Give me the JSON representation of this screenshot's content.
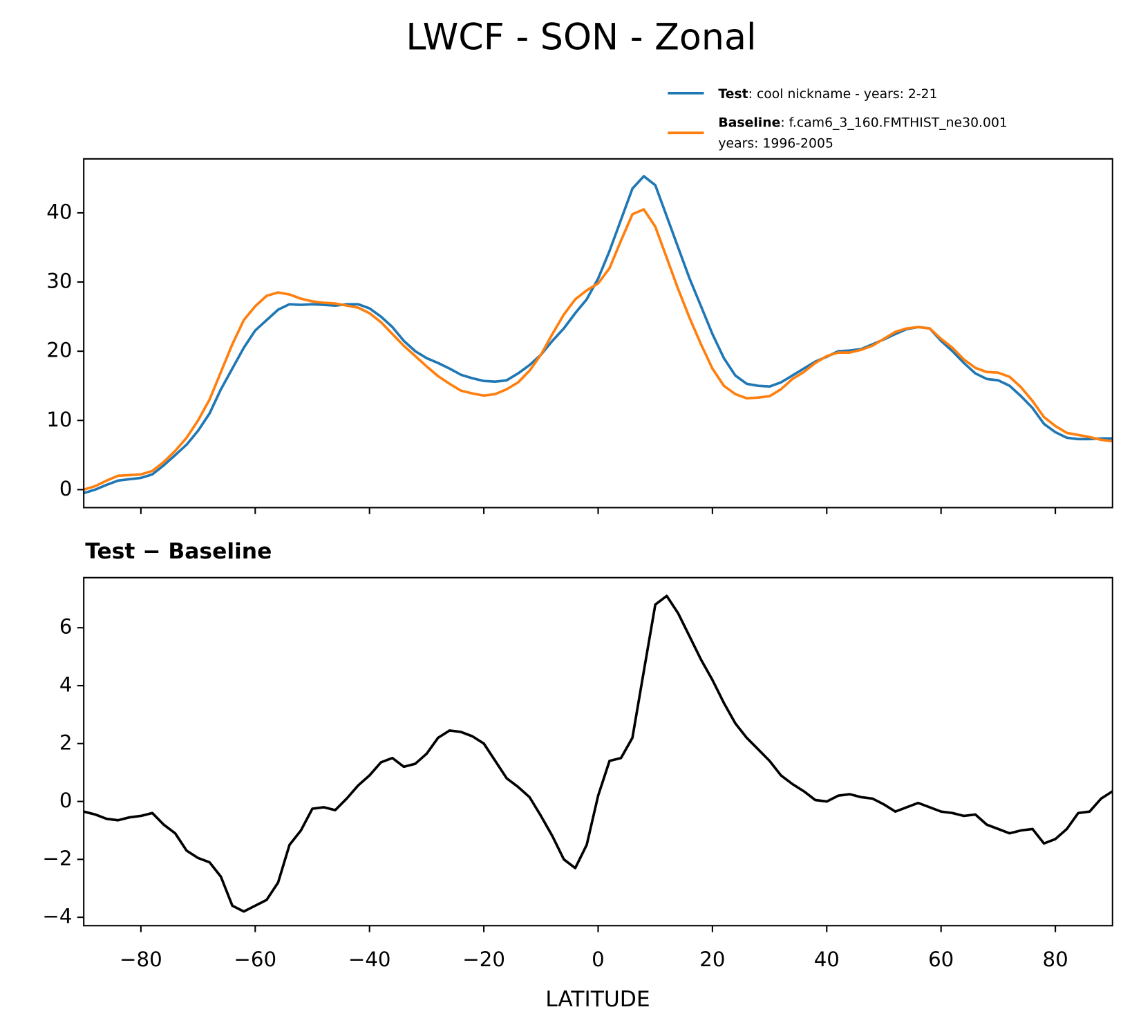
{
  "title": "LWCF - SON - Zonal",
  "chart_data": [
    {
      "type": "line",
      "x": [
        -90,
        -88,
        -86,
        -84,
        -82,
        -80,
        -78,
        -76,
        -74,
        -72,
        -70,
        -68,
        -66,
        -64,
        -62,
        -60,
        -58,
        -56,
        -54,
        -52,
        -50,
        -48,
        -46,
        -44,
        -42,
        -40,
        -38,
        -36,
        -34,
        -32,
        -30,
        -28,
        -26,
        -24,
        -22,
        -20,
        -18,
        -16,
        -14,
        -12,
        -10,
        -8,
        -6,
        -4,
        -2,
        0,
        2,
        4,
        6,
        8,
        10,
        12,
        14,
        16,
        18,
        20,
        22,
        24,
        26,
        28,
        30,
        32,
        34,
        36,
        38,
        40,
        42,
        44,
        46,
        48,
        50,
        52,
        54,
        56,
        58,
        60,
        62,
        64,
        66,
        68,
        70,
        72,
        74,
        76,
        78,
        80,
        82,
        84,
        86,
        88,
        90
      ],
      "series": [
        {
          "name": "Test",
          "label": ": cool nickname - years: 2-21",
          "color": "#1f77b4",
          "values": [
            -0.5,
            0,
            0.7,
            1.3,
            1.5,
            1.7,
            2.2,
            3.5,
            5,
            6.5,
            8.5,
            11,
            14.5,
            17.5,
            20.5,
            23,
            24.5,
            26,
            26.8,
            26.7,
            26.8,
            26.7,
            26.6,
            26.8,
            26.8,
            26.2,
            25,
            23.5,
            21.5,
            20,
            19,
            18.3,
            17.5,
            16.6,
            16.1,
            15.7,
            15.6,
            15.8,
            16.8,
            18,
            19.5,
            21.5,
            23.3,
            25.5,
            27.5,
            30.5,
            34.5,
            39,
            43.5,
            45.3,
            44,
            39.5,
            35,
            30.5,
            26.5,
            22.5,
            19,
            16.5,
            15.3,
            15,
            14.9,
            15.5,
            16.5,
            17.5,
            18.5,
            19.2,
            20,
            20.1,
            20.3,
            21,
            21.7,
            22.5,
            23.2,
            23.5,
            23.3,
            21.5,
            20,
            18.3,
            16.8,
            16,
            15.8,
            15,
            13.5,
            11.8,
            9.5,
            8.3,
            7.5,
            7.3,
            7.3,
            7.4,
            7.4
          ]
        },
        {
          "name": "Baseline",
          "label": [
            ": f.cam6_3_160.FMTHIST_ne30.001",
            "years: 1996-2005"
          ],
          "color": "#ff7f0e",
          "values": [
            0,
            0.5,
            1.3,
            2,
            2.1,
            2.2,
            2.7,
            4,
            5.6,
            7.5,
            10,
            13,
            17,
            21,
            24.5,
            26.5,
            28,
            28.5,
            28.2,
            27.6,
            27.2,
            27,
            26.9,
            26.6,
            26.3,
            25.5,
            24.2,
            22.5,
            20.8,
            19.3,
            17.8,
            16.4,
            15.3,
            14.3,
            13.9,
            13.6,
            13.8,
            14.5,
            15.5,
            17.2,
            19.5,
            22.5,
            25.3,
            27.5,
            28.8,
            29.8,
            32,
            36,
            39.8,
            40.5,
            38,
            33.5,
            29,
            24.8,
            21,
            17.5,
            15,
            13.8,
            13.2,
            13.3,
            13.5,
            14.5,
            16,
            17,
            18.3,
            19.3,
            19.8,
            19.8,
            20.2,
            20.8,
            21.8,
            22.8,
            23.3,
            23.5,
            23.3,
            21.8,
            20.5,
            18.8,
            17.6,
            17,
            16.9,
            16.3,
            14.8,
            12.8,
            10.5,
            9.2,
            8.2,
            7.9,
            7.6,
            7.2,
            7.0
          ]
        }
      ],
      "xlim": [
        -90,
        90
      ],
      "ylim": [
        -2.6,
        47.8
      ],
      "yticks": [
        0,
        10,
        20,
        30,
        40
      ]
    },
    {
      "type": "line",
      "title": "Test − Baseline",
      "xlabel": "LATITUDE",
      "x": [
        -90,
        -88,
        -86,
        -84,
        -82,
        -80,
        -78,
        -76,
        -74,
        -72,
        -70,
        -68,
        -66,
        -64,
        -62,
        -60,
        -58,
        -56,
        -54,
        -52,
        -50,
        -48,
        -46,
        -44,
        -42,
        -40,
        -38,
        -36,
        -34,
        -32,
        -30,
        -28,
        -26,
        -24,
        -22,
        -20,
        -18,
        -16,
        -14,
        -12,
        -10,
        -8,
        -6,
        -4,
        -2,
        0,
        2,
        4,
        6,
        8,
        10,
        12,
        14,
        16,
        18,
        20,
        22,
        24,
        26,
        28,
        30,
        32,
        34,
        36,
        38,
        40,
        42,
        44,
        46,
        48,
        50,
        52,
        54,
        56,
        58,
        60,
        62,
        64,
        66,
        68,
        70,
        72,
        74,
        76,
        78,
        80,
        82,
        84,
        86,
        88,
        90
      ],
      "values": [
        -0.35,
        -0.45,
        -0.6,
        -0.65,
        -0.55,
        -0.5,
        -0.4,
        -0.8,
        -1.1,
        -1.7,
        -1.95,
        -2.1,
        -2.6,
        -3.6,
        -3.8,
        -3.6,
        -3.4,
        -2.8,
        -1.5,
        -1.0,
        -0.25,
        -0.2,
        -0.3,
        0.1,
        0.55,
        0.9,
        1.35,
        1.5,
        1.2,
        1.3,
        1.65,
        2.2,
        2.45,
        2.4,
        2.25,
        2.0,
        1.4,
        0.8,
        0.5,
        0.15,
        -0.5,
        -1.2,
        -2.0,
        -2.3,
        -1.5,
        0.2,
        1.4,
        1.5,
        2.2,
        4.5,
        6.8,
        7.1,
        6.5,
        5.7,
        4.9,
        4.2,
        3.4,
        2.7,
        2.2,
        1.8,
        1.4,
        0.9,
        0.6,
        0.35,
        0.05,
        0,
        0.2,
        0.25,
        0.15,
        0.1,
        -0.1,
        -0.35,
        -0.2,
        -0.05,
        -0.2,
        -0.35,
        -0.4,
        -0.5,
        -0.45,
        -0.8,
        -0.95,
        -1.1,
        -1.0,
        -0.95,
        -1.45,
        -1.3,
        -0.95,
        -0.4,
        -0.35,
        0.1,
        0.35
      ],
      "color": "#000000",
      "xlim": [
        -90,
        90
      ],
      "ylim": [
        -4.29,
        7.73
      ],
      "xticks": [
        {
          "value": -80,
          "label": "−80"
        },
        {
          "value": -60,
          "label": "−60"
        },
        {
          "value": -40,
          "label": "−40"
        },
        {
          "value": -20,
          "label": "−20"
        },
        0,
        20,
        40,
        60,
        80
      ],
      "yticks": [
        {
          "value": -4,
          "label": "−4"
        },
        {
          "value": -2,
          "label": "−2"
        },
        0,
        2,
        4,
        6
      ]
    }
  ]
}
